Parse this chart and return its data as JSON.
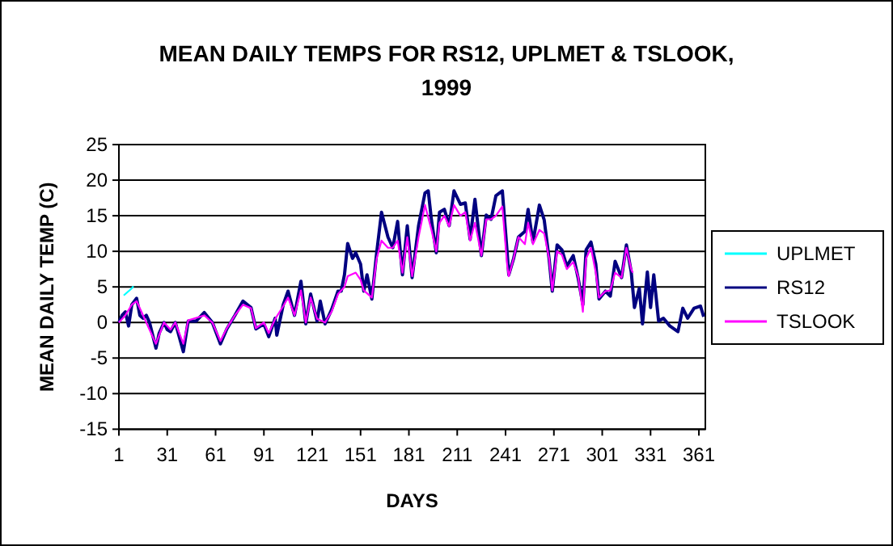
{
  "chart_data": {
    "type": "line",
    "title": "MEAN DAILY TEMPS FOR RS12, UPLMET & TSLOOK,\n1999",
    "xlabel": "DAYS",
    "ylabel": "MEAN DAILY TEMP (C)",
    "xlim": [
      1,
      365
    ],
    "xticks": [
      1,
      31,
      61,
      91,
      121,
      151,
      181,
      211,
      241,
      271,
      301,
      331,
      361
    ],
    "ylim": [
      -15,
      25
    ],
    "yticks": [
      -15,
      -10,
      -5,
      0,
      5,
      10,
      15,
      20,
      25
    ],
    "grid": "y",
    "legend": "right",
    "marker": "none",
    "line_style": "solid",
    "series": [
      {
        "name": "UPLMET",
        "color": "#00ffff",
        "x": [
          4,
          5,
          6,
          8,
          9,
          10
        ],
        "values": [
          3.8,
          4.0,
          4.2,
          4.6,
          4.8,
          5.1
        ]
      },
      {
        "name": "RS12",
        "color": "#000080",
        "x": [
          1,
          3,
          5,
          7,
          9,
          12,
          14,
          16,
          18,
          20,
          24,
          26,
          29,
          31,
          33,
          36,
          41,
          44,
          49,
          54,
          59,
          64,
          68,
          73,
          78,
          83,
          86,
          91,
          94,
          98,
          99,
          103,
          106,
          110,
          114,
          117,
          120,
          124,
          126,
          129,
          133,
          137,
          139,
          141,
          143,
          146,
          148,
          151,
          153,
          155,
          158,
          161,
          164,
          168,
          171,
          174,
          177,
          180,
          183,
          187,
          191,
          193,
          195,
          198,
          200,
          203,
          206,
          209,
          213,
          216,
          219,
          222,
          226,
          229,
          232,
          235,
          239,
          242,
          243,
          246,
          249,
          253,
          255,
          258,
          262,
          265,
          268,
          270,
          273,
          276,
          279,
          283,
          286,
          289,
          291,
          294,
          297,
          299,
          303,
          306,
          309,
          313,
          316,
          319,
          321,
          324,
          326,
          329,
          331,
          333,
          336,
          339,
          343,
          348,
          351,
          354,
          358,
          362,
          364
        ],
        "values": [
          0,
          1,
          1.5,
          -0.5,
          2.5,
          3.4,
          1,
          0.6,
          1,
          0,
          -3.6,
          -1.5,
          0,
          -1,
          -1.3,
          0,
          -4.1,
          0.2,
          0.2,
          1.4,
          0,
          -3,
          -0.9,
          1,
          3,
          2.1,
          -0.9,
          -0.2,
          -2,
          0.6,
          -1.8,
          2.5,
          4.4,
          1,
          5.8,
          -0.2,
          4,
          0.2,
          3,
          -0.2,
          1.8,
          4.4,
          4.4,
          6.7,
          11.1,
          9,
          9.8,
          8.2,
          4.4,
          6.7,
          3.3,
          9.8,
          15.5,
          12,
          10.5,
          14.2,
          6.7,
          13.6,
          6.3,
          13.6,
          18.2,
          18.5,
          14.4,
          9.8,
          15.5,
          15.9,
          13.6,
          18.5,
          16.6,
          16.8,
          11.7,
          17.3,
          9.4,
          15.1,
          14.5,
          17.8,
          18.5,
          9.8,
          6.7,
          9,
          12,
          12.8,
          15.9,
          11.3,
          16.5,
          14.4,
          9,
          4.4,
          10.9,
          10.2,
          7.9,
          9.4,
          6.3,
          2.5,
          10.2,
          11.3,
          8.2,
          3.3,
          4.4,
          3.7,
          8.6,
          6.3,
          10.9,
          7.1,
          2.1,
          4.8,
          -0.2,
          7.1,
          2.1,
          6.7,
          0.2,
          0.6,
          -0.5,
          -1.3,
          2,
          0.6,
          2,
          2.3,
          0.8
        ]
      },
      {
        "name": "TSLOOK",
        "color": "#ff00ff",
        "x": [
          1,
          5,
          9,
          12,
          16,
          24,
          29,
          33,
          36,
          41,
          44,
          54,
          59,
          64,
          68,
          73,
          78,
          83,
          86,
          91,
          94,
          98,
          103,
          106,
          110,
          114,
          117,
          120,
          124,
          129,
          133,
          137,
          141,
          143,
          148,
          151,
          153,
          158,
          161,
          164,
          168,
          171,
          174,
          177,
          180,
          183,
          187,
          191,
          195,
          198,
          200,
          203,
          206,
          209,
          213,
          216,
          219,
          222,
          226,
          229,
          232,
          235,
          239,
          242,
          243,
          246,
          249,
          253,
          255,
          258,
          262,
          265,
          268,
          270,
          273,
          276,
          279,
          283,
          286,
          289,
          291,
          294,
          297,
          299,
          303,
          306,
          309,
          313,
          316,
          319,
          320
        ],
        "values": [
          0,
          1,
          2.5,
          3,
          1,
          -3,
          0,
          -1,
          0,
          -3,
          0.3,
          1,
          0,
          -2.6,
          -0.8,
          1,
          2.5,
          2,
          -0.8,
          0,
          -1.5,
          0.5,
          2.3,
          3.5,
          1,
          4.5,
          0,
          3.5,
          0.5,
          0,
          1.5,
          4,
          5,
          6.5,
          7,
          6,
          4.5,
          3.5,
          9,
          11.5,
          10.5,
          10.5,
          11.5,
          7,
          12,
          6.5,
          12,
          16.5,
          13,
          10,
          14,
          15,
          13.5,
          16.5,
          15,
          15.5,
          11.5,
          14,
          9.4,
          14.5,
          14.5,
          15,
          16.3,
          8,
          6.5,
          9,
          12,
          11,
          14,
          11,
          13,
          12.5,
          9,
          4.5,
          10,
          9.5,
          7.5,
          8.5,
          6.5,
          1.5,
          9,
          10.5,
          7,
          3.5,
          4.4,
          4.5,
          7,
          6.3,
          10.5,
          7.5,
          7
        ]
      }
    ]
  }
}
